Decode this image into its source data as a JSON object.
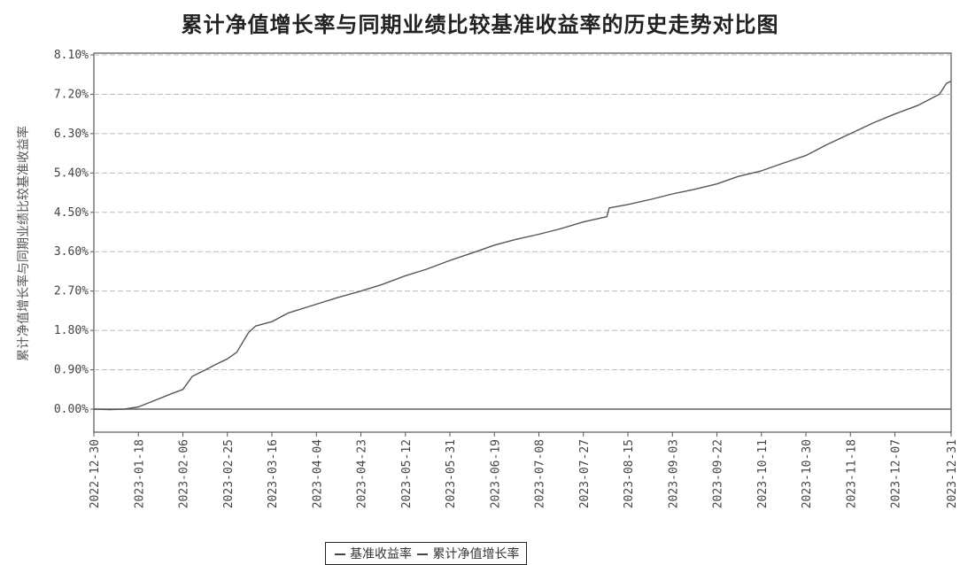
{
  "chart_data": {
    "type": "line",
    "title": "累计净值增长率与同期业绩比较基准收益率的历史走势对比图",
    "xlabel": "",
    "ylabel": "累计净值增长率与同期业绩比较基准收益率",
    "ylim": [
      0,
      8.1
    ],
    "ytick_labels": [
      "0.00%",
      "0.90%",
      "1.80%",
      "2.70%",
      "3.60%",
      "4.50%",
      "5.40%",
      "6.30%",
      "7.20%",
      "8.10%"
    ],
    "xtick_labels": [
      "2022-12-30",
      "2023-01-18",
      "2023-02-06",
      "2023-02-25",
      "2023-03-16",
      "2023-04-04",
      "2023-04-23",
      "2023-05-12",
      "2023-05-31",
      "2023-06-19",
      "2023-07-08",
      "2023-07-27",
      "2023-08-15",
      "2023-09-03",
      "2023-09-22",
      "2023-10-11",
      "2023-10-30",
      "2023-11-18",
      "2023-12-07",
      "2023-12-31"
    ],
    "grid": true,
    "legend_position": "bottom-center",
    "series": [
      {
        "name": "基准收益率",
        "x": [
          "2022-12-30",
          "2023-12-31"
        ],
        "values": [
          0.0,
          0.0
        ]
      },
      {
        "name": "累计净值增长率",
        "x": [
          "2022-12-30",
          "2023-01-06",
          "2023-01-12",
          "2023-01-18",
          "2023-01-25",
          "2023-02-01",
          "2023-02-06",
          "2023-02-10",
          "2023-02-15",
          "2023-02-20",
          "2023-02-25",
          "2023-03-01",
          "2023-03-06",
          "2023-03-09",
          "2023-03-16",
          "2023-03-23",
          "2023-04-04",
          "2023-04-13",
          "2023-04-23",
          "2023-05-02",
          "2023-05-12",
          "2023-05-21",
          "2023-05-31",
          "2023-06-10",
          "2023-06-19",
          "2023-06-28",
          "2023-07-08",
          "2023-07-17",
          "2023-07-27",
          "2023-08-06",
          "2023-08-07",
          "2023-08-15",
          "2023-08-25",
          "2023-09-03",
          "2023-09-12",
          "2023-09-22",
          "2023-10-01",
          "2023-10-11",
          "2023-10-20",
          "2023-10-30",
          "2023-11-08",
          "2023-11-18",
          "2023-11-28",
          "2023-12-07",
          "2023-12-17",
          "2023-12-26",
          "2023-12-29",
          "2023-12-31"
        ],
        "values": [
          0.0,
          -0.01,
          0.0,
          0.05,
          0.2,
          0.35,
          0.45,
          0.75,
          0.88,
          1.02,
          1.15,
          1.3,
          1.75,
          1.9,
          2.0,
          2.2,
          2.4,
          2.55,
          2.7,
          2.85,
          3.05,
          3.2,
          3.4,
          3.58,
          3.75,
          3.88,
          4.0,
          4.12,
          4.28,
          4.4,
          4.6,
          4.68,
          4.8,
          4.92,
          5.02,
          5.15,
          5.32,
          5.45,
          5.62,
          5.8,
          6.05,
          6.3,
          6.55,
          6.75,
          6.95,
          7.2,
          7.45,
          7.5
        ]
      }
    ]
  }
}
